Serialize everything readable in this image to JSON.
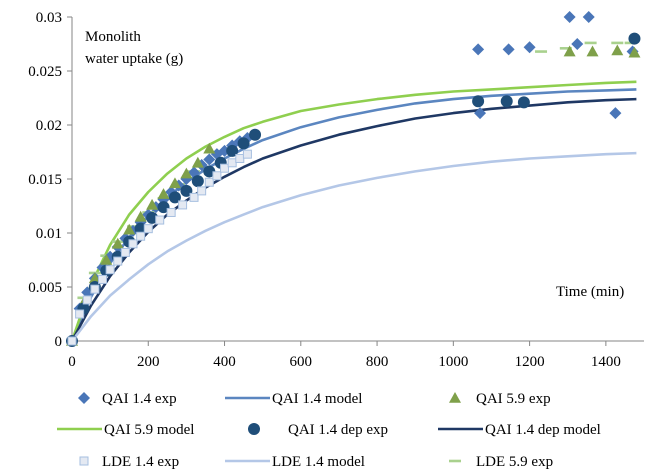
{
  "chart_data": {
    "type": "scatter",
    "ylabel": "Monolith water uptake (g)",
    "ylabel_lines": [
      "Monolith",
      "water uptake (g)"
    ],
    "xlabel": "Time (min)",
    "xlim": [
      0,
      1500
    ],
    "ylim": [
      0,
      0.03
    ],
    "x_ticks": [
      0,
      200,
      400,
      600,
      800,
      1000,
      1200,
      1400
    ],
    "y_ticks": [
      0,
      0.005,
      0.01,
      0.015,
      0.02,
      0.025,
      0.03
    ],
    "y_tick_labels": [
      "0",
      "0.005",
      "0.01",
      "0.015",
      "0.02",
      "0.025",
      "0.03"
    ],
    "x_tick_labels": [
      "0",
      "200",
      "400",
      "600",
      "800",
      "1000",
      "1200",
      "1400"
    ],
    "legend_position": "bottom",
    "series": [
      {
        "name": "QAI 1.4 exp",
        "kind": "marker",
        "marker": "diamond",
        "color": "#4a76b8",
        "x": [
          0,
          20,
          40,
          60,
          80,
          100,
          120,
          140,
          160,
          180,
          200,
          220,
          240,
          260,
          280,
          300,
          320,
          340,
          360,
          380,
          400,
          420,
          440,
          460,
          1065,
          1070,
          1145,
          1200,
          1305,
          1325,
          1355,
          1425,
          1470
        ],
        "y": [
          0,
          0.003,
          0.0045,
          0.0058,
          0.0068,
          0.0078,
          0.0087,
          0.0095,
          0.0102,
          0.011,
          0.0117,
          0.0124,
          0.0131,
          0.0138,
          0.0144,
          0.015,
          0.0156,
          0.0163,
          0.0168,
          0.0173,
          0.0176,
          0.0181,
          0.0185,
          0.0188,
          0.027,
          0.0211,
          0.027,
          0.0272,
          0.03,
          0.0275,
          0.03,
          0.0211,
          0.0268
        ]
      },
      {
        "name": "QAI 1.4 model",
        "kind": "line",
        "color": "#5b86c0",
        "x": [
          0,
          50,
          100,
          150,
          200,
          250,
          300,
          350,
          400,
          450,
          500,
          600,
          700,
          800,
          900,
          1000,
          1100,
          1200,
          1300,
          1400,
          1480
        ],
        "y": [
          0,
          0.0041,
          0.0072,
          0.0096,
          0.0116,
          0.0133,
          0.0147,
          0.0159,
          0.0169,
          0.0178,
          0.0186,
          0.0198,
          0.0207,
          0.0214,
          0.022,
          0.0224,
          0.0227,
          0.0229,
          0.0231,
          0.0232,
          0.0233
        ]
      },
      {
        "name": "QAI 5.9 exp",
        "kind": "marker",
        "marker": "triangle",
        "color": "#7fa04a",
        "x": [
          0,
          30,
          60,
          90,
          120,
          150,
          180,
          210,
          240,
          270,
          300,
          330,
          360,
          1305,
          1365,
          1430,
          1475
        ],
        "y": [
          0,
          0.0035,
          0.0058,
          0.0075,
          0.009,
          0.0103,
          0.0115,
          0.0126,
          0.0136,
          0.0146,
          0.0155,
          0.0165,
          0.0178,
          0.0268,
          0.0268,
          0.0269,
          0.0267
        ]
      },
      {
        "name": "QAI 5.9 model",
        "kind": "line",
        "color": "#8fcf4f",
        "x": [
          0,
          50,
          100,
          150,
          200,
          250,
          300,
          350,
          400,
          450,
          500,
          600,
          700,
          800,
          900,
          1000,
          1100,
          1200,
          1300,
          1400,
          1480
        ],
        "y": [
          0,
          0.0052,
          0.0089,
          0.0117,
          0.0138,
          0.0155,
          0.0169,
          0.018,
          0.0189,
          0.0197,
          0.0203,
          0.0213,
          0.0219,
          0.0224,
          0.0228,
          0.0231,
          0.0233,
          0.0235,
          0.0237,
          0.0239,
          0.024
        ]
      },
      {
        "name": "QAI 1.4 dep exp",
        "kind": "marker",
        "marker": "circle",
        "color": "#1f4e79",
        "x": [
          0,
          30,
          60,
          90,
          120,
          150,
          180,
          210,
          240,
          270,
          300,
          330,
          360,
          390,
          420,
          450,
          480,
          1065,
          1140,
          1185,
          1475
        ],
        "y": [
          0,
          0.003,
          0.005,
          0.0065,
          0.0078,
          0.0092,
          0.0104,
          0.0114,
          0.0124,
          0.0133,
          0.0139,
          0.0148,
          0.0157,
          0.0165,
          0.0176,
          0.0183,
          0.0191,
          0.0222,
          0.0222,
          0.0221,
          0.028
        ]
      },
      {
        "name": "QAI 1.4 dep model",
        "kind": "line",
        "color": "#1f3864",
        "x": [
          0,
          50,
          100,
          150,
          200,
          250,
          300,
          350,
          400,
          450,
          500,
          600,
          700,
          800,
          900,
          1000,
          1100,
          1200,
          1300,
          1400,
          1480
        ],
        "y": [
          0,
          0.0033,
          0.006,
          0.0082,
          0.0101,
          0.0117,
          0.013,
          0.0142,
          0.0152,
          0.0161,
          0.0169,
          0.0181,
          0.0191,
          0.0199,
          0.0206,
          0.0211,
          0.0215,
          0.0218,
          0.0221,
          0.0223,
          0.0224
        ]
      },
      {
        "name": "LDE 1.4 exp",
        "kind": "marker",
        "marker": "square",
        "color": "#a6bfe0",
        "x": [
          0,
          20,
          40,
          60,
          80,
          100,
          120,
          140,
          160,
          180,
          200,
          230,
          260,
          290,
          320,
          340,
          360,
          380,
          400,
          420,
          440,
          460
        ],
        "y": [
          0,
          0.0025,
          0.0038,
          0.0048,
          0.0057,
          0.0066,
          0.0074,
          0.0082,
          0.009,
          0.0097,
          0.0104,
          0.0112,
          0.0119,
          0.0126,
          0.0133,
          0.0139,
          0.0147,
          0.0153,
          0.016,
          0.0165,
          0.0169,
          0.0173
        ]
      },
      {
        "name": "LDE 1.4 model",
        "kind": "line",
        "color": "#b4c7e7",
        "x": [
          0,
          50,
          100,
          150,
          200,
          250,
          300,
          350,
          400,
          450,
          500,
          600,
          700,
          800,
          900,
          1000,
          1100,
          1200,
          1300,
          1400,
          1480
        ],
        "y": [
          0,
          0.0023,
          0.0042,
          0.0057,
          0.0071,
          0.0083,
          0.0093,
          0.0102,
          0.011,
          0.0117,
          0.0124,
          0.0135,
          0.0144,
          0.0151,
          0.0157,
          0.0162,
          0.0166,
          0.0169,
          0.0171,
          0.0173,
          0.0174
        ]
      },
      {
        "name": "LDE 5.9 exp",
        "kind": "dash",
        "color": "#a9d18e",
        "x": [
          30,
          60,
          90,
          120,
          160,
          200,
          240,
          280,
          320,
          1230,
          1295,
          1360,
          1430,
          1465
        ],
        "y": [
          0.004,
          0.0063,
          0.0079,
          0.0092,
          0.0106,
          0.0119,
          0.0132,
          0.0145,
          0.0157,
          0.0268,
          0.0271,
          0.0276,
          0.0276,
          0.0276
        ]
      }
    ]
  }
}
